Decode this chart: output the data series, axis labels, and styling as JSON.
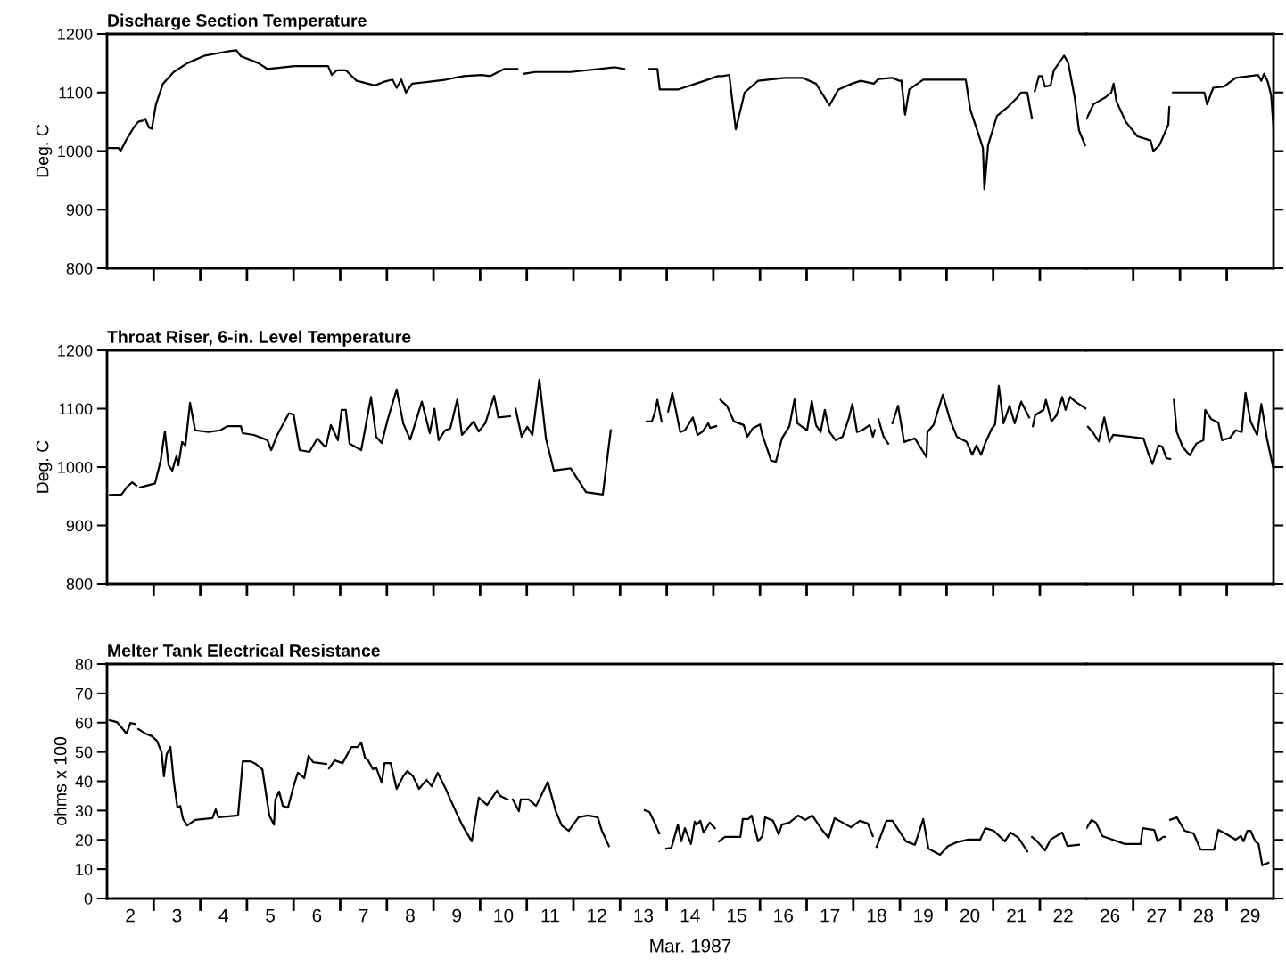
{
  "chart_data": [
    {
      "type": "line",
      "title": "Discharge Section Temperature",
      "ylabel": "Deg. C",
      "xlim": [
        1.5,
        22.5
      ],
      "ylim": [
        800,
        1200
      ],
      "yticks": [
        800,
        900,
        1000,
        1100,
        1200
      ],
      "tick_labels": "y",
      "grid": false,
      "xticks": [
        {
          "value": 2.5,
          "label": null
        },
        {
          "value": 3.5,
          "label": null
        },
        {
          "value": 4.5,
          "label": null
        },
        {
          "value": 5.5,
          "label": null
        },
        {
          "value": 6.5,
          "label": null
        },
        {
          "value": 7.5,
          "label": null
        },
        {
          "value": 8.5,
          "label": null
        },
        {
          "value": 9.5,
          "label": null
        },
        {
          "value": 10.5,
          "label": null
        },
        {
          "value": 11.5,
          "label": null
        },
        {
          "value": 12.5,
          "label": null
        },
        {
          "value": 13.5,
          "label": null
        },
        {
          "value": 14.5,
          "label": null
        },
        {
          "value": 15.5,
          "label": null
        },
        {
          "value": 16.5,
          "label": null
        },
        {
          "value": 17.5,
          "label": null
        },
        {
          "value": 18.5,
          "label": null
        },
        {
          "value": 19.5,
          "label": null
        },
        {
          "value": 20.5,
          "label": null
        },
        {
          "value": 21.5,
          "label": null
        },
        2,
        3,
        4,
        5,
        6,
        7,
        8,
        9,
        10,
        11,
        12,
        13,
        14,
        15,
        16,
        17,
        18,
        19,
        20,
        21,
        22
      ],
      "series": [
        {
          "color": "#000000",
          "x": [
            1.5,
            1.75,
            1.79,
            1.92,
            2.07,
            2.17,
            2.26,
            2.29,
            2.32,
            2.4,
            2.46,
            2.55,
            2.7,
            2.93,
            3.22,
            3.6,
            4.08,
            4.27,
            4.37,
            4.75,
            4.94,
            5.52,
            6.24,
            6.32,
            6.43,
            6.62,
            6.85,
            7.24,
            7.43,
            7.62,
            7.71,
            7.81,
            7.91,
            8.04,
            8.38,
            8.77,
            9.15,
            9.53,
            9.72,
            10.01,
            10.3,
            10.38,
            10.45,
            10.68,
            11.44,
            12.4,
            12.59,
            12.9,
            13.13,
            13.3,
            13.35,
            13.74,
            14.31,
            14.6,
            14.7,
            14.84,
            14.98,
            15.17,
            15.46,
            16.03,
            16.41,
            16.7,
            16.99,
            17.18,
            17.47,
            17.66,
            17.94,
            18.04,
            18.33,
            18.49,
            18.51,
            18.53,
            18.61,
            18.7,
            19.0,
            19.28,
            19.91,
            20.01,
            20.18,
            20.28,
            20.31,
            20.39,
            20.58,
            20.81,
            21.0,
            21.1,
            21.23,
            21.33,
            21.36,
            21.39,
            21.48,
            21.54,
            21.61,
            21.73,
            21.8,
            22.02,
            22.11,
            22.25,
            22.34,
            22.47
          ],
          "values": [
            1005,
            1005,
            1000,
            1020,
            1040,
            1050,
            1052,
            null,
            1055,
            1040,
            1038,
            1080,
            1115,
            1135,
            1150,
            1163,
            1170,
            1172,
            1162,
            1150,
            1140,
            1145,
            1145,
            1130,
            1138,
            1138,
            1120,
            1112,
            1118,
            1122,
            1108,
            1122,
            1100,
            1115,
            1118,
            1122,
            1128,
            1130,
            1128,
            1140,
            1140,
            null,
            1132,
            1135,
            1135,
            1143,
            1140,
            null,
            1140,
            1140,
            1105,
            1105,
            1120,
            1128,
            1128,
            1130,
            1037,
            1100,
            1120,
            1125,
            1125,
            1115,
            1078,
            1105,
            1115,
            1120,
            1115,
            1123,
            1125,
            1120,
            null,
            1120,
            1062,
            1105,
            1122,
            1122,
            1122,
            1070,
            1030,
            1005,
            935,
            1010,
            1060,
            1075,
            1090,
            1100,
            1100,
            1056,
            null,
            1102,
            1128,
            1128,
            1110,
            1112,
            1138,
            1163,
            1150,
            1090,
            1035,
            1010
          ]
        }
      ]
    },
    {
      "type": "line",
      "xlim": [
        25.5,
        29.5
      ],
      "ylim": [
        800,
        1200
      ],
      "yticks": [
        800,
        900,
        1000,
        1100,
        1200
      ],
      "tick_labels": false,
      "grid": false,
      "xticks": [
        {
          "value": 26.5,
          "label": null
        },
        {
          "value": 27.5,
          "label": null
        },
        {
          "value": 28.5,
          "label": null
        },
        26,
        27,
        28,
        29
      ],
      "series": [
        {
          "color": "#000000",
          "x": [
            25.5,
            25.65,
            25.91,
            26.03,
            26.08,
            26.14,
            26.34,
            26.59,
            26.87,
            26.93,
            27.06,
            27.25,
            27.27,
            27.31,
            27.35,
            28.02,
            28.08,
            28.21,
            28.44,
            28.69,
            29.17,
            29.24,
            29.3,
            29.38,
            29.45,
            29.5
          ],
          "values": [
            1055,
            1080,
            1092,
            1100,
            1115,
            1085,
            1050,
            1025,
            1018,
            1000,
            1010,
            1045,
            1075,
            null,
            1100,
            1100,
            1080,
            1108,
            1110,
            1125,
            1130,
            1120,
            1132,
            1118,
            1095,
            1040
          ]
        }
      ]
    },
    {
      "type": "line",
      "title": "Throat Riser, 6-in. Level Temperature",
      "ylabel": "Deg. C",
      "xlim": [
        1.5,
        22.5
      ],
      "ylim": [
        800,
        1200
      ],
      "yticks": [
        800,
        900,
        1000,
        1100,
        1200
      ],
      "tick_labels": "y",
      "grid": false,
      "xticks": [
        {
          "value": 2.5,
          "label": null
        },
        {
          "value": 3.5,
          "label": null
        },
        {
          "value": 4.5,
          "label": null
        },
        {
          "value": 5.5,
          "label": null
        },
        {
          "value": 6.5,
          "label": null
        },
        {
          "value": 7.5,
          "label": null
        },
        {
          "value": 8.5,
          "label": null
        },
        {
          "value": 9.5,
          "label": null
        },
        {
          "value": 10.5,
          "label": null
        },
        {
          "value": 11.5,
          "label": null
        },
        {
          "value": 12.5,
          "label": null
        },
        {
          "value": 13.5,
          "label": null
        },
        {
          "value": 14.5,
          "label": null
        },
        {
          "value": 15.5,
          "label": null
        },
        {
          "value": 16.5,
          "label": null
        },
        {
          "value": 17.5,
          "label": null
        },
        {
          "value": 18.5,
          "label": null
        },
        {
          "value": 19.5,
          "label": null
        },
        {
          "value": 20.5,
          "label": null
        },
        {
          "value": 21.5,
          "label": null
        },
        2,
        3,
        4,
        5,
        6,
        7,
        8,
        9,
        10,
        11,
        12,
        13,
        14,
        15,
        16,
        17,
        18,
        19,
        20,
        21,
        22
      ],
      "series": [
        {
          "color": "#000000",
          "x": [
            1.56,
            1.81,
            1.92,
            2.04,
            2.13,
            2.17,
            2.21,
            2.53,
            2.65,
            2.74,
            2.82,
            2.9,
            2.99,
            3.03,
            3.11,
            3.18,
            3.28,
            3.39,
            3.68,
            3.93,
            4.08,
            4.37,
            4.41,
            4.65,
            4.94,
            5.02,
            5.15,
            5.27,
            5.4,
            5.5,
            5.63,
            5.84,
            6.01,
            6.17,
            6.2,
            6.3,
            6.45,
            6.53,
            6.62,
            6.7,
            6.95,
            7.16,
            7.27,
            7.39,
            7.52,
            7.71,
            7.85,
            8.0,
            8.25,
            8.42,
            8.52,
            8.61,
            8.75,
            8.86,
            9.01,
            9.11,
            9.36,
            9.47,
            9.61,
            9.8,
            9.89,
            10.14,
            10.2,
            10.26,
            10.39,
            10.51,
            10.62,
            10.77,
            10.91,
            11.08,
            11.44,
            11.77,
            12.13,
            12.3,
            12.7,
            13.07,
            13.18,
            13.24,
            13.3,
            13.39,
            13.46,
            13.53,
            13.62,
            13.79,
            13.89,
            14.06,
            14.16,
            14.27,
            14.39,
            14.43,
            14.56,
            14.6,
            14.65,
            14.79,
            14.94,
            15.15,
            15.23,
            15.34,
            15.5,
            15.55,
            15.74,
            15.84,
            15.97,
            16.13,
            16.24,
            16.3,
            16.51,
            16.61,
            16.7,
            16.8,
            16.89,
            16.99,
            17.12,
            17.27,
            17.41,
            17.48,
            17.58,
            17.69,
            17.85,
            17.92,
            17.96,
            18.0,
            18.04,
            18.15,
            18.25,
            18.3,
            18.34,
            18.46,
            18.59,
            18.82,
            19.07,
            19.09,
            19.22,
            19.42,
            19.57,
            19.72,
            19.93,
            20.05,
            20.14,
            20.24,
            20.33,
            20.47,
            20.54,
            20.62,
            20.72,
            20.85,
            20.96,
            21.1,
            21.27,
            21.31,
            21.35,
            21.4,
            21.58,
            21.63,
            21.75,
            21.86,
            21.98,
            22.05,
            22.15,
            22.26,
            22.49
          ],
          "values": [
            952,
            953,
            965,
            974,
            968,
            null,
            965,
            972,
            1011,
            1061,
            1003,
            994,
            1019,
            1003,
            1043,
            1037,
            1110,
            1063,
            1060,
            1063,
            1070,
            1070,
            1058,
            1055,
            1046,
            1029,
            1055,
            1073,
            1092,
            1090,
            1029,
            1026,
            1049,
            1035,
            1037,
            1072,
            1046,
            1098,
            1098,
            1040,
            1029,
            1120,
            1052,
            1041,
            1082,
            1133,
            1075,
            1047,
            1112,
            1058,
            1100,
            1046,
            1063,
            1066,
            1116,
            1055,
            1078,
            1061,
            1075,
            1122,
            1085,
            1087,
            null,
            1100,
            1052,
            1069,
            1055,
            1150,
            1049,
            994,
            998,
            957,
            953,
            1063,
            null,
            1078,
            1078,
            1092,
            1115,
            1078,
            null,
            1095,
            1127,
            1060,
            1063,
            1085,
            1055,
            1061,
            1075,
            1067,
            1070,
            null,
            1115,
            1105,
            1078,
            1072,
            1052,
            1066,
            1073,
            1055,
            1011,
            1009,
            1049,
            1070,
            1116,
            1075,
            1063,
            1113,
            1072,
            1060,
            1098,
            1060,
            1046,
            1052,
            1085,
            1108,
            1060,
            1063,
            1072,
            1052,
            1063,
            null,
            1082,
            1052,
            1040,
            null,
            1075,
            1105,
            1043,
            1049,
            1017,
            1060,
            1072,
            1124,
            1082,
            1052,
            1043,
            1021,
            1037,
            1021,
            1041,
            1066,
            1073,
            1139,
            1075,
            1105,
            1075,
            1112,
            1085,
            null,
            1070,
            1089,
            1098,
            1115,
            1078,
            1089,
            1120,
            1098,
            1120,
            1112,
            1100
          ]
        }
      ]
    },
    {
      "type": "line",
      "xlim": [
        25.5,
        29.5
      ],
      "ylim": [
        800,
        1200
      ],
      "yticks": [
        800,
        900,
        1000,
        1100,
        1200
      ],
      "tick_labels": false,
      "grid": false,
      "xticks": [
        {
          "value": 26.5,
          "label": null
        },
        {
          "value": 27.5,
          "label": null
        },
        {
          "value": 28.5,
          "label": null
        },
        26,
        27,
        28,
        29
      ],
      "series": [
        {
          "color": "#000000",
          "x": [
            25.53,
            25.63,
            25.76,
            25.88,
            25.99,
            26.07,
            26.41,
            26.72,
            26.81,
            26.91,
            27.04,
            27.12,
            27.21,
            27.29,
            27.33,
            27.37,
            27.43,
            27.56,
            27.71,
            27.85,
            28.0,
            28.04,
            28.17,
            28.32,
            28.4,
            28.57,
            28.69,
            28.82,
            28.9,
            29.01,
            29.15,
            29.24,
            29.36,
            29.49
          ],
          "values": [
            1069,
            1060,
            1044,
            1085,
            1043,
            1055,
            1052,
            1049,
            1026,
            1005,
            1037,
            1035,
            1015,
            1014,
            null,
            1115,
            1060,
            1034,
            1020,
            1040,
            1046,
            1098,
            1082,
            1076,
            1046,
            1050,
            1063,
            1060,
            1127,
            1078,
            1055,
            1108,
            1049,
            1000
          ]
        }
      ]
    },
    {
      "type": "line",
      "title": "Melter Tank Electrical Resistance",
      "ylabel": "ohms x 100",
      "xlabel": "Mar. 1987",
      "xlim": [
        1.5,
        22.5
      ],
      "ylim": [
        0,
        80
      ],
      "yticks": [
        0,
        10,
        20,
        30,
        40,
        50,
        60,
        70,
        80
      ],
      "grid": false,
      "xticks": [
        {
          "value": 2.5,
          "label": null
        },
        {
          "value": 3.5,
          "label": null
        },
        {
          "value": 4.5,
          "label": null
        },
        {
          "value": 5.5,
          "label": null
        },
        {
          "value": 6.5,
          "label": null
        },
        {
          "value": 7.5,
          "label": null
        },
        {
          "value": 8.5,
          "label": null
        },
        {
          "value": 9.5,
          "label": null
        },
        {
          "value": 10.5,
          "label": null
        },
        {
          "value": 11.5,
          "label": null
        },
        {
          "value": 12.5,
          "label": null
        },
        {
          "value": 13.5,
          "label": null
        },
        {
          "value": 14.5,
          "label": null
        },
        {
          "value": 15.5,
          "label": null
        },
        {
          "value": 16.5,
          "label": null
        },
        {
          "value": 17.5,
          "label": null
        },
        {
          "value": 18.5,
          "label": null
        },
        {
          "value": 19.5,
          "label": null
        },
        {
          "value": 20.5,
          "label": null
        },
        {
          "value": 21.5,
          "label": null
        },
        2,
        3,
        4,
        5,
        6,
        7,
        8,
        9,
        10,
        11,
        12,
        13,
        14,
        15,
        16,
        17,
        18,
        19,
        20,
        21,
        22
      ],
      "series": [
        {
          "color": "#000000",
          "x": [
            1.56,
            1.71,
            1.92,
            2.0,
            2.09,
            2.13,
            2.17,
            2.32,
            2.46,
            2.57,
            2.67,
            2.72,
            2.78,
            2.86,
            2.93,
            3.01,
            3.07,
            3.13,
            3.22,
            3.39,
            3.76,
            3.83,
            3.89,
            4.31,
            4.41,
            4.58,
            4.69,
            4.83,
            4.9,
            4.98,
            5.08,
            5.11,
            5.19,
            5.27,
            5.38,
            5.5,
            5.59,
            5.73,
            5.82,
            5.92,
            6.2,
            6.23,
            6.26,
            6.38,
            6.55,
            6.74,
            6.87,
            6.95,
            7.03,
            7.1,
            7.2,
            7.27,
            7.39,
            7.45,
            7.58,
            7.71,
            7.85,
            7.94,
            8.06,
            8.19,
            8.35,
            8.46,
            8.59,
            8.78,
            8.86,
            9.11,
            9.32,
            9.47,
            9.65,
            9.86,
            9.93,
            10.09,
            10.15,
            10.2,
            10.33,
            10.37,
            10.54,
            10.7,
            10.95,
            11.12,
            11.25,
            11.4,
            11.61,
            11.81,
            12.02,
            12.11,
            12.26,
            12.7,
            13.03,
            13.13,
            13.24,
            13.34,
            13.4,
            13.49,
            13.6,
            13.74,
            13.81,
            13.89,
            14.02,
            14.1,
            14.14,
            14.22,
            14.29,
            14.42,
            14.53,
            14.58,
            14.62,
            14.75,
            15.08,
            15.13,
            15.25,
            15.32,
            15.46,
            15.55,
            15.61,
            15.78,
            15.9,
            15.97,
            16.13,
            16.32,
            16.47,
            16.62,
            16.83,
            16.97,
            17.1,
            17.45,
            17.64,
            17.81,
            17.92,
            17.96,
            18.0,
            18.21,
            18.34,
            18.63,
            18.82,
            19.0,
            19.11,
            19.36,
            19.53,
            19.72,
            19.97,
            20.22,
            20.33,
            20.51,
            20.75,
            20.87,
            21.04,
            21.23,
            21.28,
            21.33,
            21.44,
            21.61,
            21.73,
            21.98,
            22.09,
            22.34
          ],
          "values": [
            60.8,
            60.2,
            56.3,
            59.9,
            59.6,
            null,
            57.8,
            56.3,
            55.4,
            53.8,
            49.9,
            41.7,
            49.3,
            51.7,
            40.2,
            31.0,
            31.6,
            27.1,
            24.9,
            26.8,
            27.4,
            30.4,
            27.7,
            28.3,
            46.8,
            46.8,
            45.9,
            44.1,
            36.8,
            28.3,
            25.2,
            33.8,
            36.5,
            31.6,
            31.0,
            38.3,
            42.9,
            41.1,
            48.7,
            46.5,
            45.9,
            null,
            44.4,
            47.1,
            46.2,
            51.7,
            51.7,
            53.2,
            48.1,
            47.1,
            44.1,
            44.7,
            39.5,
            46.2,
            46.2,
            37.4,
            41.7,
            43.5,
            41.7,
            37.4,
            40.5,
            38.3,
            42.9,
            36.8,
            33.8,
            25.2,
            19.5,
            34.4,
            31.9,
            36.8,
            35.0,
            33.8,
            null,
            33.8,
            29.8,
            33.8,
            33.8,
            31.6,
            39.8,
            29.8,
            24.9,
            23.1,
            27.7,
            28.3,
            27.7,
            23.1,
            17.9,
            null,
            30.1,
            29.5,
            25.9,
            22.2,
            null,
            17.0,
            17.3,
            25.2,
            19.5,
            24.0,
            18.6,
            26.2,
            25.2,
            26.5,
            22.5,
            25.9,
            24.0,
            null,
            19.5,
            21.0,
            21.0,
            27.1,
            27.1,
            28.3,
            19.5,
            21.3,
            27.7,
            26.5,
            21.9,
            25.2,
            25.9,
            28.3,
            26.8,
            28.3,
            23.4,
            20.7,
            27.4,
            24.3,
            26.5,
            25.6,
            21.3,
            null,
            17.6,
            26.5,
            26.5,
            19.5,
            18.3,
            27.1,
            17.0,
            14.9,
            17.9,
            19.2,
            20.1,
            20.1,
            24.0,
            23.1,
            19.5,
            22.5,
            20.7,
            16.1,
            null,
            21.0,
            19.5,
            16.4,
            20.1,
            22.5,
            17.9,
            18.3
          ]
        }
      ]
    },
    {
      "type": "line",
      "xlim": [
        25.5,
        29.5
      ],
      "ylim": [
        0,
        80
      ],
      "yticks": [
        0,
        10,
        20,
        30,
        40,
        50,
        60,
        70,
        80
      ],
      "tick_labels": "x",
      "grid": false,
      "xticks": [
        {
          "value": 26.5,
          "label": null
        },
        {
          "value": 27.5,
          "label": null
        },
        {
          "value": 28.5,
          "label": null
        },
        26,
        27,
        28,
        29
      ],
      "series": [
        {
          "color": "#000000",
          "x": [
            25.5,
            25.61,
            25.7,
            25.84,
            26.32,
            26.66,
            26.7,
            26.95,
            27.02,
            27.14,
            27.18,
            27.24,
            27.29,
            27.43,
            27.6,
            27.79,
            27.94,
            28.23,
            28.32,
            28.5,
            28.69,
            28.8,
            28.86,
            28.94,
            29.01,
            29.11,
            29.18,
            29.26,
            29.39
          ],
          "values": [
            24.0,
            26.8,
            25.9,
            21.3,
            18.6,
            18.6,
            24.0,
            23.4,
            19.5,
            21.0,
            21.0,
            null,
            26.8,
            27.7,
            23.1,
            22.2,
            16.7,
            16.7,
            23.4,
            21.9,
            20.1,
            21.3,
            19.5,
            23.1,
            23.1,
            19.5,
            18.6,
            11.3,
            12.2
          ]
        }
      ]
    }
  ]
}
